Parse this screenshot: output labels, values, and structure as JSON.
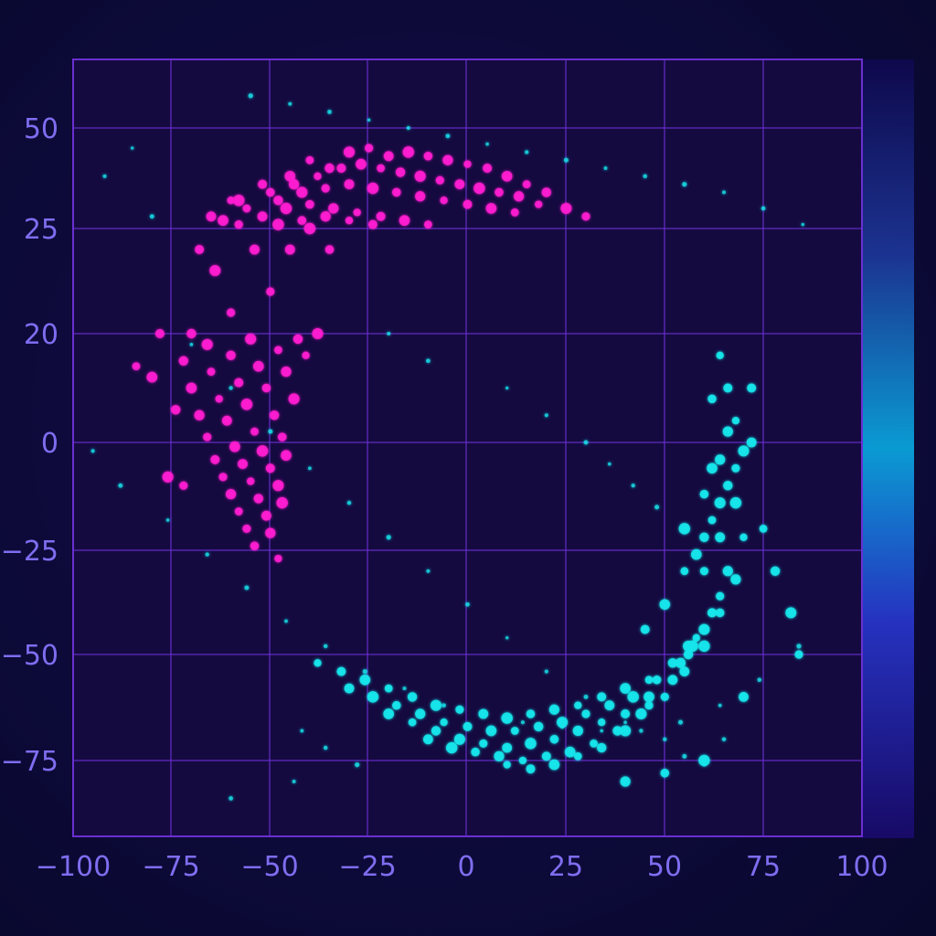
{
  "chart_data": {
    "type": "scatter",
    "title": "",
    "xlabel": "",
    "ylabel": "",
    "xlim": [
      -100,
      100
    ],
    "grid": true,
    "x_ticks": [
      "−100",
      "−75",
      "−50",
      "−25",
      "0",
      "25",
      "50",
      "75",
      "100"
    ],
    "y_ticks": [
      "50",
      "25",
      "20",
      "0",
      "−25",
      "−50",
      "−75"
    ],
    "colorbar": {
      "position": "right",
      "colors": [
        "#1a0a6e",
        "#1e6ad8",
        "#00c8f0",
        "#2a2ad8",
        "#1a0a6e"
      ]
    },
    "colors": {
      "background": "#0a0a35",
      "plot_background": "#150a40",
      "grid": "#6a2fd0",
      "tick_label": "#7f6df0",
      "cluster_a": "#ff1ad0",
      "cluster_b": "#16e6ec"
    },
    "series": [
      {
        "color": "#ff1ad0",
        "x": [
          -60,
          -52,
          -45,
          -40,
          -35,
          -30,
          -25,
          -20,
          -15,
          -10,
          -5,
          0,
          5,
          10,
          15,
          20,
          25,
          30,
          -65,
          -58,
          -50,
          -44,
          -38,
          -32,
          -27,
          -22,
          -17,
          -12,
          -7,
          -2,
          3,
          8,
          13,
          18,
          -68,
          -62,
          -56,
          -48,
          -42,
          -36,
          -30,
          -24,
          -18,
          -12,
          -6,
          0,
          6,
          12,
          -70,
          -64,
          -58,
          -52,
          -46,
          -40,
          -34,
          -28,
          -22,
          -16,
          -10,
          -72,
          -66,
          -60,
          -54,
          -48,
          -42,
          -36,
          -30,
          -24,
          -70,
          -65,
          -60,
          -55,
          -50,
          -45,
          -40,
          -35,
          -68,
          -63,
          -58,
          -53,
          -48,
          -43,
          -38,
          -66,
          -61,
          -56,
          -51,
          -46,
          -41,
          -64,
          -59,
          -54,
          -49,
          -44,
          -62,
          -57,
          -52,
          -47,
          -60,
          -55,
          -50,
          -46,
          -58,
          -53,
          -48,
          -56,
          -51,
          -47,
          -54,
          -50,
          -48,
          -78,
          -80,
          -84,
          -74,
          -76,
          -72
        ],
        "y": [
          32,
          36,
          38,
          42,
          40,
          44,
          45,
          43,
          44,
          43,
          42,
          41,
          40,
          38,
          36,
          34,
          30,
          28,
          28,
          32,
          34,
          36,
          38,
          40,
          41,
          40,
          39,
          38,
          37,
          36,
          35,
          34,
          33,
          31,
          24,
          27,
          30,
          32,
          34,
          35,
          36,
          35,
          34,
          33,
          32,
          31,
          30,
          29,
          20,
          23,
          26,
          28,
          30,
          31,
          30,
          29,
          28,
          27,
          26,
          15,
          18,
          21,
          24,
          26,
          27,
          28,
          27,
          26,
          10,
          13,
          16,
          19,
          22,
          24,
          25,
          24,
          5,
          8,
          11,
          14,
          17,
          19,
          20,
          1,
          4,
          7,
          10,
          13,
          16,
          -4,
          -1,
          2,
          5,
          8,
          -8,
          -5,
          -2,
          1,
          -12,
          -9,
          -6,
          -3,
          -16,
          -13,
          -10,
          -20,
          -17,
          -14,
          -24,
          -21,
          -27,
          20,
          12,
          14,
          6,
          -8,
          -10
        ]
      },
      {
        "color": "#16e6ec",
        "x": [
          -38,
          -32,
          -26,
          -20,
          -14,
          -8,
          -2,
          4,
          10,
          16,
          22,
          28,
          34,
          40,
          46,
          52,
          56,
          60,
          -30,
          -24,
          -18,
          -12,
          -6,
          0,
          6,
          12,
          18,
          24,
          30,
          36,
          42,
          48,
          54,
          58,
          62,
          -20,
          -14,
          -8,
          -2,
          4,
          10,
          16,
          22,
          28,
          34,
          40,
          46,
          52,
          56,
          60,
          64,
          -10,
          -4,
          2,
          8,
          14,
          20,
          26,
          32,
          38,
          44,
          50,
          55,
          60,
          64,
          68,
          10,
          16,
          22,
          28,
          34,
          40,
          46,
          52,
          57,
          62,
          66,
          70,
          45,
          50,
          55,
          60,
          64,
          68,
          72,
          55,
          60,
          64,
          68,
          72,
          58,
          62,
          66,
          70,
          60,
          64,
          68,
          62,
          66,
          64,
          66,
          62,
          75,
          78,
          82,
          84,
          70,
          60,
          50,
          40
        ],
        "y": [
          -52,
          -54,
          -56,
          -58,
          -60,
          -62,
          -63,
          -64,
          -65,
          -64,
          -63,
          -62,
          -60,
          -58,
          -56,
          -52,
          -48,
          -44,
          -58,
          -60,
          -62,
          -64,
          -66,
          -67,
          -68,
          -68,
          -67,
          -66,
          -64,
          -62,
          -60,
          -56,
          -52,
          -46,
          -40,
          -64,
          -66,
          -68,
          -70,
          -71,
          -72,
          -71,
          -70,
          -68,
          -66,
          -64,
          -60,
          -56,
          -50,
          -44,
          -36,
          -70,
          -72,
          -73,
          -74,
          -75,
          -74,
          -73,
          -71,
          -68,
          -64,
          -60,
          -54,
          -48,
          -40,
          -32,
          -76,
          -77,
          -76,
          -74,
          -72,
          -68,
          -62,
          -56,
          -48,
          -40,
          -30,
          -22,
          -44,
          -38,
          -30,
          -22,
          -14,
          -6,
          0,
          -20,
          -12,
          -4,
          4,
          10,
          -26,
          -18,
          -10,
          -2,
          -30,
          -22,
          -14,
          8,
          2,
          16,
          10,
          -6,
          -20,
          -30,
          -40,
          -50,
          -60,
          -75,
          -78,
          -80
        ]
      },
      {
        "color": "#16e6ec",
        "x": [
          -85,
          -92,
          -80,
          -70,
          -60,
          -50,
          -40,
          -30,
          -20,
          -10,
          0,
          10,
          20,
          30,
          40,
          50,
          55,
          60,
          65,
          -55,
          -45,
          -35,
          -25,
          -15,
          -5,
          5,
          15,
          25,
          35,
          45,
          55,
          65,
          75,
          85,
          -95,
          -88,
          -76,
          -66,
          -56,
          -46,
          -36,
          -26,
          -16,
          -6,
          4,
          14,
          24,
          34,
          44,
          54,
          64,
          74,
          84,
          -20,
          -10,
          10,
          20,
          30,
          36,
          42,
          48,
          -42,
          -36,
          -28,
          -44,
          -60
        ],
        "y": [
          45,
          38,
          28,
          18,
          10,
          2,
          -6,
          -14,
          -22,
          -30,
          -38,
          -46,
          -54,
          -60,
          -66,
          -70,
          -74,
          -76,
          -70,
          58,
          56,
          54,
          52,
          50,
          48,
          46,
          44,
          42,
          40,
          38,
          36,
          34,
          30,
          26,
          -2,
          -10,
          -18,
          -26,
          -34,
          -42,
          -48,
          -54,
          -58,
          -62,
          -64,
          -66,
          -67,
          -68,
          -68,
          -66,
          -62,
          -56,
          -48,
          20,
          15,
          10,
          5,
          0,
          -5,
          -10,
          -15,
          -68,
          -72,
          -76,
          -80,
          -84
        ]
      }
    ]
  }
}
